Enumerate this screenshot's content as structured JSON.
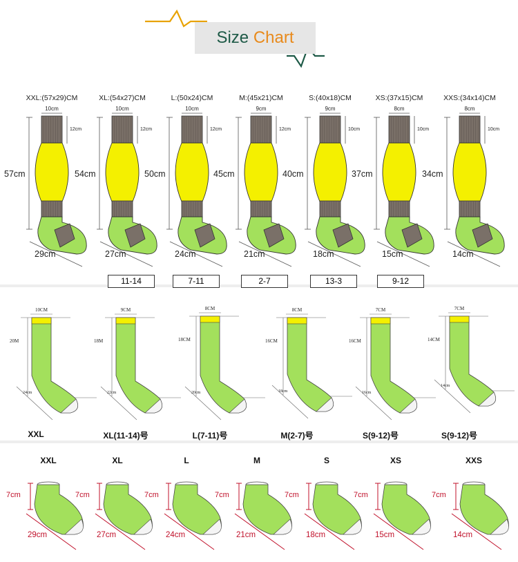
{
  "title": {
    "part1": "Size ",
    "part2": "Chart"
  },
  "colors": {
    "yellow": "#f4f000",
    "green": "#a3e05c",
    "gray": "#7a7068",
    "dim_red": "#c0102a",
    "title_green": "#1e5a47",
    "title_orange": "#e88a1c"
  },
  "knee_socks": [
    {
      "size": "XXL:(57x29)CM",
      "top": "10cm",
      "cuff": "12cm",
      "length": "57cm",
      "foot": "29cm",
      "range": ""
    },
    {
      "size": "XL:(54x27)CM",
      "top": "10cm",
      "cuff": "12cm",
      "length": "54cm",
      "foot": "27cm",
      "range": "11-14"
    },
    {
      "size": "L:(50x24)CM",
      "top": "10cm",
      "cuff": "12cm",
      "length": "50cm",
      "foot": "24cm",
      "range": "7-11"
    },
    {
      "size": "M:(45x21)CM",
      "top": "9cm",
      "cuff": "12cm",
      "length": "45cm",
      "foot": "21cm",
      "range": "2-7"
    },
    {
      "size": "S:(40x18)CM",
      "top": "9cm",
      "cuff": "10cm",
      "length": "40cm",
      "foot": "18cm",
      "range": "13-3"
    },
    {
      "size": "XS:(37x15)CM",
      "top": "8cm",
      "cuff": "10cm",
      "length": "37cm",
      "foot": "15cm",
      "range": "9-12"
    },
    {
      "size": "XXS:(34x14)CM",
      "top": "8cm",
      "cuff": "10cm",
      "length": "34cm",
      "foot": "14cm",
      "range": ""
    }
  ],
  "crew_socks": [
    {
      "top": "10CM",
      "height": "20M",
      "foot": "24cm",
      "name": "XXL"
    },
    {
      "top": "9CM",
      "height": "18M",
      "foot": "22cm",
      "name": "XL(11-14)号"
    },
    {
      "top": "8CM",
      "height": "18CM",
      "foot": "20cm",
      "name": "L(7-11)号"
    },
    {
      "top": "8CM",
      "height": "16CM",
      "foot": "18cm",
      "name": "M(2-7)号"
    },
    {
      "top": "7CM",
      "height": "16CM",
      "foot": "16cm",
      "name": "S(9-12)号"
    },
    {
      "top": "7CM",
      "height": "14CM",
      "foot": "14cm",
      "name": "S(9-12)号"
    }
  ],
  "ankle_socks": [
    {
      "name": "XXL",
      "height": "7cm",
      "foot": "29cm"
    },
    {
      "name": "XL",
      "height": "7cm",
      "foot": "27cm"
    },
    {
      "name": "L",
      "height": "7cm",
      "foot": "24cm"
    },
    {
      "name": "M",
      "height": "7cm",
      "foot": "21cm"
    },
    {
      "name": "S",
      "height": "7cm",
      "foot": "18cm"
    },
    {
      "name": "XS",
      "height": "7cm",
      "foot": "15cm"
    },
    {
      "name": "XXS",
      "height": "7cm",
      "foot": "14cm"
    }
  ]
}
